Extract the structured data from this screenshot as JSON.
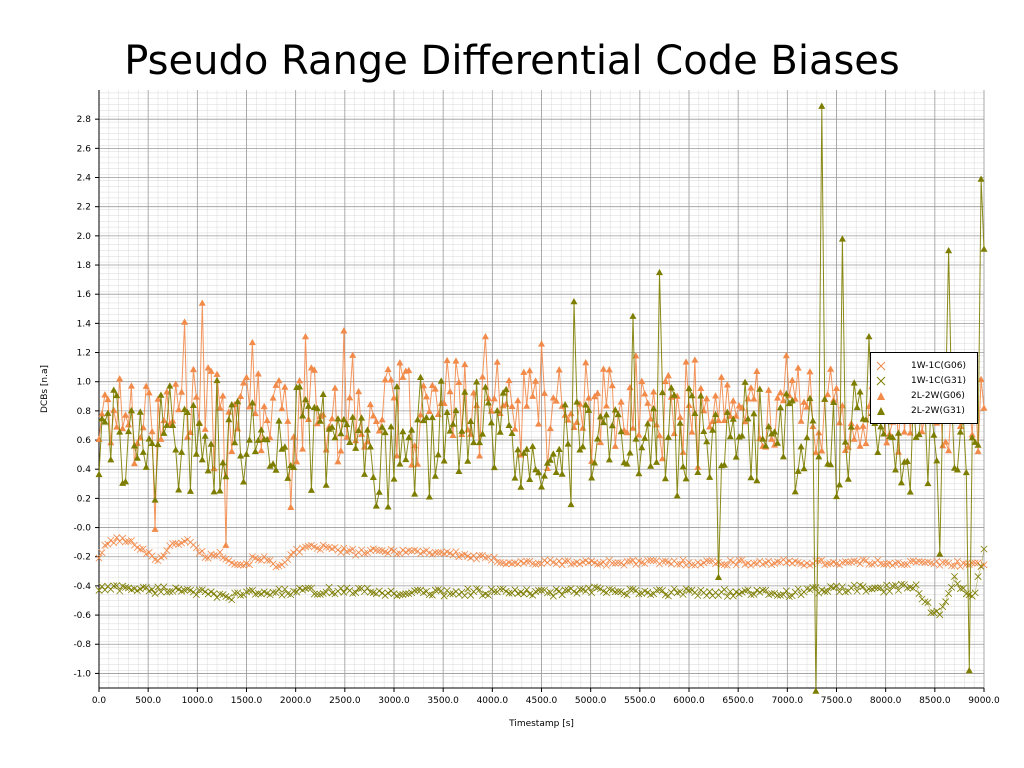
{
  "title": "Pseudo Range Differential Code Biases",
  "chart_data": {
    "type": "line",
    "title": "Pseudo Range Differential Code Biases",
    "xlabel": "Timestamp [s]",
    "ylabel": "DCBs [n.a]",
    "xlim": [
      0,
      9000
    ],
    "ylim": [
      -1.1,
      3.0
    ],
    "x_ticks": [
      "0.0",
      "500.0",
      "1000.0",
      "1500.0",
      "2000.0",
      "2500.0",
      "3000.0",
      "3500.0",
      "4000.0",
      "4500.0",
      "5000.0",
      "5500.0",
      "6000.0",
      "6500.0",
      "7000.0",
      "7500.0",
      "8000.0",
      "8500.0",
      "9000.0"
    ],
    "y_ticks": [
      "-1.0",
      "-0.8",
      "-0.6",
      "-0.4",
      "-0.2",
      "-0.0",
      "0.2",
      "0.4",
      "0.6",
      "0.8",
      "1.0",
      "1.2",
      "1.4",
      "1.6",
      "1.8",
      "2.0",
      "2.2",
      "2.4",
      "2.6",
      "2.8"
    ],
    "grid": true,
    "legend_position": "right",
    "sample_interval_s": 30,
    "series": [
      {
        "name": "1W-1C(G06)",
        "marker": "x",
        "color": "#f28a4a",
        "anchors": [
          [
            0,
            -0.2
          ],
          [
            100,
            -0.1
          ],
          [
            200,
            -0.08
          ],
          [
            300,
            -0.1
          ],
          [
            400,
            -0.12
          ],
          [
            500,
            -0.18
          ],
          [
            600,
            -0.22
          ],
          [
            700,
            -0.15
          ],
          [
            800,
            -0.1
          ],
          [
            900,
            -0.09
          ],
          [
            1000,
            -0.15
          ],
          [
            1100,
            -0.2
          ],
          [
            1200,
            -0.18
          ],
          [
            1300,
            -0.2
          ],
          [
            1400,
            -0.25
          ],
          [
            1500,
            -0.25
          ],
          [
            1600,
            -0.2
          ],
          [
            1700,
            -0.22
          ],
          [
            1800,
            -0.27
          ],
          [
            1900,
            -0.22
          ],
          [
            2000,
            -0.17
          ],
          [
            2200,
            -0.13
          ],
          [
            2400,
            -0.15
          ],
          [
            2600,
            -0.17
          ],
          [
            3000,
            -0.16
          ],
          [
            3500,
            -0.17
          ],
          [
            3800,
            -0.2
          ],
          [
            4200,
            -0.24
          ],
          [
            5000,
            -0.24
          ],
          [
            6000,
            -0.24
          ],
          [
            7000,
            -0.24
          ],
          [
            8000,
            -0.24
          ],
          [
            9000,
            -0.25
          ]
        ],
        "noise": 0.02
      },
      {
        "name": "1W-1C(G31)",
        "marker": "x",
        "color": "#7d7d00",
        "anchors": [
          [
            0,
            -0.42
          ],
          [
            300,
            -0.41
          ],
          [
            500,
            -0.43
          ],
          [
            900,
            -0.42
          ],
          [
            1100,
            -0.46
          ],
          [
            1300,
            -0.48
          ],
          [
            1500,
            -0.45
          ],
          [
            2000,
            -0.44
          ],
          [
            2500,
            -0.43
          ],
          [
            3000,
            -0.45
          ],
          [
            4000,
            -0.44
          ],
          [
            4500,
            -0.45
          ],
          [
            5000,
            -0.43
          ],
          [
            5500,
            -0.45
          ],
          [
            6000,
            -0.44
          ],
          [
            6500,
            -0.45
          ],
          [
            7000,
            -0.45
          ],
          [
            7500,
            -0.42
          ],
          [
            8000,
            -0.42
          ],
          [
            8300,
            -0.4
          ],
          [
            8500,
            -0.6
          ],
          [
            8600,
            -0.55
          ],
          [
            8700,
            -0.35
          ],
          [
            8900,
            -0.5
          ],
          [
            9000,
            -0.15
          ]
        ],
        "noise": 0.025
      },
      {
        "name": "2L-2W(G06)",
        "marker": "^",
        "color": "#f28a4a",
        "level": 0.8,
        "noise": 0.3,
        "seed": 17,
        "peaks": [
          [
            1040,
            1.54
          ],
          [
            4500,
            1.26
          ],
          [
            3920,
            1.31
          ],
          [
            2480,
            1.35
          ],
          [
            1550,
            1.27
          ],
          [
            2100,
            1.31
          ],
          [
            870,
            1.41
          ],
          [
            7000,
            1.18
          ],
          [
            9000,
            0.82
          ],
          [
            1300,
            -0.12
          ],
          [
            570,
            -0.01
          ],
          [
            1950,
            0.14
          ]
        ]
      },
      {
        "name": "2L-2W(G31)",
        "marker": "^",
        "color": "#7d7d00",
        "level": 0.6,
        "noise": 0.35,
        "seed": 29,
        "peaks": [
          [
            7350,
            2.89
          ],
          [
            7550,
            1.98
          ],
          [
            8980,
            2.39
          ],
          [
            8650,
            1.9
          ],
          [
            9000,
            1.91
          ],
          [
            5700,
            1.75
          ],
          [
            4820,
            1.55
          ],
          [
            5430,
            1.45
          ],
          [
            7300,
            -1.12
          ],
          [
            8850,
            -0.98
          ],
          [
            6300,
            -0.34
          ],
          [
            8560,
            -0.18
          ],
          [
            7830,
            1.31
          ],
          [
            8200,
            0.45
          ]
        ]
      }
    ]
  }
}
